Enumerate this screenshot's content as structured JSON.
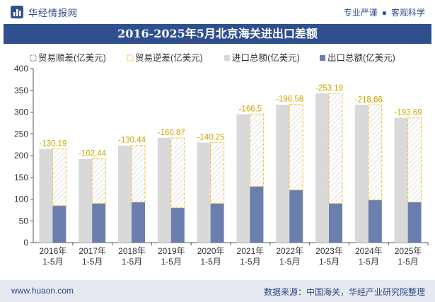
{
  "header": {
    "logo_text": "华经情报网",
    "tagline_left": "专业严谨",
    "tagline_right": "客观科学"
  },
  "footer": {
    "url": "www.huaon.com",
    "source": "数据来源：中国海关，华经产业研究院整理"
  },
  "colors": {
    "title_bg": "#2f4f8f",
    "import": "#d9d9d9",
    "export": "#6a7fae",
    "deficit_border": "#f2c430",
    "label": "#c9a600"
  },
  "chart_data": {
    "type": "bar",
    "title": "2016-2025年5月北京海关进出口差额",
    "categories": [
      "2016年\n1-5月",
      "2017年\n1-5月",
      "2018年\n1-5月",
      "2019年\n1-5月",
      "2020年\n1-5月",
      "2021年\n1-5月",
      "2022年\n1-5月",
      "2023年\n1-5月",
      "2024年\n1-5月",
      "2025年\n1-5月"
    ],
    "series": [
      {
        "name": "贸易顺差(亿美元)",
        "values": [
          0,
          0,
          0,
          0,
          0,
          0,
          0,
          0,
          0,
          0
        ]
      },
      {
        "name": "贸易逆差(亿美元)",
        "values": [
          -130.19,
          -102.44,
          -130.44,
          -160.87,
          -140.25,
          -166.5,
          -196.58,
          -253.19,
          -218.66,
          -193.69
        ]
      },
      {
        "name": "进口总额(亿美元)",
        "values": [
          215,
          192,
          223,
          241,
          230,
          295,
          317,
          343,
          317,
          287
        ]
      },
      {
        "name": "出口总额(亿美元)",
        "values": [
          85,
          90,
          93,
          80,
          90,
          129,
          121,
          90,
          98,
          93
        ]
      }
    ],
    "ylim": [
      0,
      400
    ],
    "yticks": [
      0,
      50,
      100,
      150,
      200,
      250,
      300,
      350,
      400
    ],
    "legend_position": "top-left",
    "grid": false
  }
}
